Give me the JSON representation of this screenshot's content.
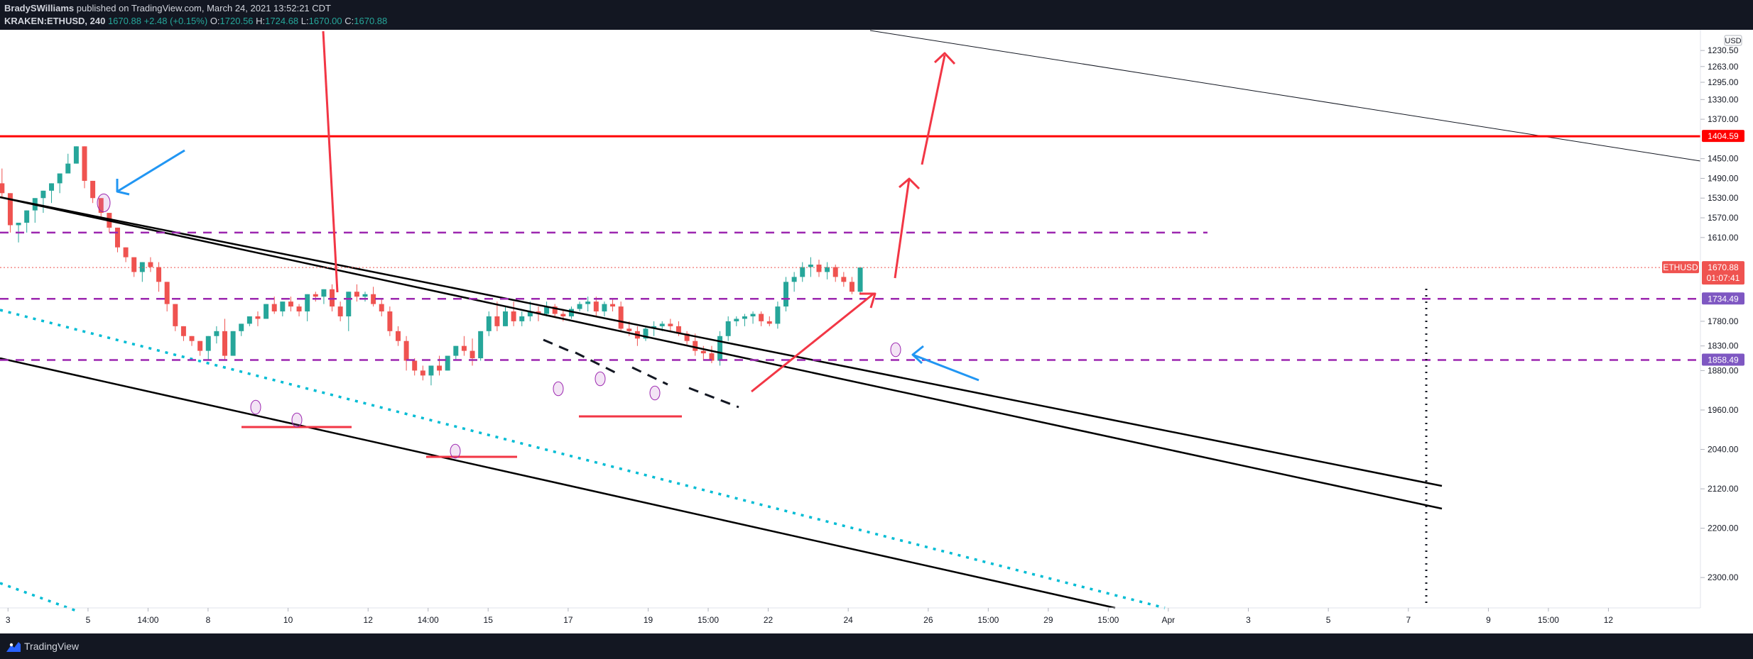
{
  "header": {
    "author": "BradySWilliams",
    "published_text": "published on TradingView.com, March 24, 2021 13:52:21 CDT",
    "symbol": "KRAKEN:ETHUSD, 240",
    "last": "1670.88",
    "change": "+2.48 (+0.15%)",
    "o_label": "O:",
    "o": "1720.56",
    "h_label": "H:",
    "h": "1724.68",
    "l_label": "L:",
    "l": "1670.00",
    "c_label": "C:",
    "c": "1670.88"
  },
  "footer": {
    "brand": "TradingView"
  },
  "colors": {
    "background": "#ffffff",
    "up": "#26a69a",
    "down": "#ef5350",
    "resistance": "#ff0000",
    "dashed_levels": "#9c27b0",
    "channel": "#000000",
    "dotted_trend": "#00bcd4",
    "arrows_blue": "#2196f3",
    "arrows_red": "#f23645"
  },
  "chart_data": {
    "type": "candlestick",
    "symbol": "ETHUSD",
    "y_axis": {
      "unit": "USD",
      "inverted": true,
      "range": [
        1200,
        2330
      ],
      "ticks": [
        1230.5,
        1263,
        1295,
        1330,
        1370,
        1450,
        1490,
        1530,
        1570,
        1610,
        1780,
        1830,
        1880,
        1960,
        2040,
        2120,
        2200,
        2300
      ],
      "tick_labels": [
        "1230.50",
        "1263.00",
        "1295.00",
        "1330.00",
        "1370.00",
        "1450.00",
        "1490.00",
        "1530.00",
        "1570.00",
        "1610.00",
        "1780.00",
        "1830.00",
        "1880.00",
        "1960.00",
        "2040.00",
        "2120.00",
        "2200.00",
        "2300.00"
      ]
    },
    "x_axis": {
      "range_days": [
        2.8,
        45.3
      ],
      "ticks": [
        {
          "t": 3,
          "label": "3"
        },
        {
          "t": 5,
          "label": "5"
        },
        {
          "t": 6.5,
          "label": "14:00"
        },
        {
          "t": 8,
          "label": "8"
        },
        {
          "t": 10,
          "label": "10"
        },
        {
          "t": 12,
          "label": "12"
        },
        {
          "t": 13.5,
          "label": "14:00"
        },
        {
          "t": 15,
          "label": "15"
        },
        {
          "t": 17,
          "label": "17"
        },
        {
          "t": 19,
          "label": "19"
        },
        {
          "t": 20.5,
          "label": "15:00"
        },
        {
          "t": 22,
          "label": "22"
        },
        {
          "t": 24,
          "label": "24"
        },
        {
          "t": 26,
          "label": "26"
        },
        {
          "t": 27.5,
          "label": "15:00"
        },
        {
          "t": 29,
          "label": "29"
        },
        {
          "t": 30.5,
          "label": "15:00"
        },
        {
          "t": 32,
          "label": "Apr"
        },
        {
          "t": 34,
          "label": "3"
        },
        {
          "t": 36,
          "label": "5"
        },
        {
          "t": 38,
          "label": "7"
        },
        {
          "t": 40,
          "label": "9"
        },
        {
          "t": 41.5,
          "label": "15:00"
        },
        {
          "t": 43,
          "label": "12"
        }
      ]
    },
    "price_labels": [
      {
        "value": 1404.59,
        "text": "1404.59",
        "color": "#ff0000"
      },
      {
        "value": 1734.49,
        "text": "1734.49",
        "color": "#7e57c2"
      },
      {
        "value": 1858.49,
        "text": "1858.49",
        "color": "#7e57c2"
      }
    ],
    "current": {
      "symbol": "ETHUSD",
      "value": 1670.88,
      "text": "1670.88",
      "countdown": "01:07:41"
    },
    "candles_ohlc": [
      [
        1500,
        1530,
        1470,
        1520
      ],
      [
        1520,
        1545,
        1600,
        1585
      ],
      [
        1585,
        1595,
        1620,
        1580
      ],
      [
        1580,
        1600,
        1590,
        1555
      ],
      [
        1555,
        1570,
        1580,
        1530
      ],
      [
        1530,
        1545,
        1560,
        1515
      ],
      [
        1515,
        1528,
        1540,
        1500
      ],
      [
        1500,
        1512,
        1520,
        1480
      ],
      [
        1480,
        1470,
        1440,
        1460
      ],
      [
        1460,
        1445,
        1430,
        1425
      ],
      [
        1425,
        1435,
        1510,
        1495
      ],
      [
        1495,
        1505,
        1540,
        1530
      ],
      [
        1530,
        1545,
        1570,
        1560
      ],
      [
        1560,
        1570,
        1600,
        1590
      ],
      [
        1590,
        1598,
        1640,
        1630
      ],
      [
        1630,
        1640,
        1660,
        1650
      ],
      [
        1650,
        1655,
        1690,
        1680
      ],
      [
        1680,
        1690,
        1700,
        1660
      ],
      [
        1660,
        1650,
        1680,
        1670
      ],
      [
        1670,
        1660,
        1720,
        1700
      ],
      [
        1700,
        1705,
        1760,
        1745
      ],
      [
        1745,
        1755,
        1800,
        1790
      ],
      [
        1790,
        1795,
        1820,
        1810
      ],
      [
        1810,
        1815,
        1830,
        1820
      ],
      [
        1820,
        1825,
        1850,
        1840
      ],
      [
        1840,
        1845,
        1860,
        1810
      ],
      [
        1810,
        1790,
        1825,
        1800
      ],
      [
        1800,
        1775,
        1860,
        1850
      ],
      [
        1850,
        1845,
        1830,
        1800
      ],
      [
        1800,
        1790,
        1810,
        1785
      ],
      [
        1785,
        1780,
        1790,
        1770
      ],
      [
        1770,
        1760,
        1790,
        1775
      ],
      [
        1775,
        1760,
        1770,
        1745
      ],
      [
        1745,
        1730,
        1765,
        1760
      ],
      [
        1760,
        1750,
        1770,
        1740
      ],
      [
        1740,
        1730,
        1760,
        1750
      ],
      [
        1750,
        1745,
        1770,
        1760
      ],
      [
        1760,
        1750,
        1780,
        1725
      ],
      [
        1725,
        1720,
        1740,
        1730
      ],
      [
        1730,
        1720,
        1745,
        1715
      ],
      [
        1715,
        1705,
        1760,
        1750
      ],
      [
        1750,
        1740,
        1780,
        1770
      ],
      [
        1770,
        1760,
        1800,
        1720
      ],
      [
        1720,
        1705,
        1740,
        1730
      ],
      [
        1730,
        1720,
        1740,
        1725
      ],
      [
        1725,
        1710,
        1750,
        1745
      ],
      [
        1745,
        1735,
        1770,
        1760
      ],
      [
        1760,
        1750,
        1810,
        1800
      ],
      [
        1800,
        1790,
        1830,
        1820
      ],
      [
        1820,
        1810,
        1880,
        1860
      ],
      [
        1860,
        1855,
        1890,
        1880
      ],
      [
        1880,
        1870,
        1900,
        1890
      ],
      [
        1890,
        1880,
        1910,
        1870
      ],
      [
        1870,
        1850,
        1890,
        1880
      ],
      [
        1880,
        1850,
        1870,
        1850
      ],
      [
        1850,
        1840,
        1860,
        1830
      ],
      [
        1830,
        1810,
        1850,
        1840
      ],
      [
        1840,
        1815,
        1870,
        1855
      ],
      [
        1855,
        1850,
        1860,
        1800
      ],
      [
        1800,
        1760,
        1810,
        1770
      ],
      [
        1770,
        1740,
        1800,
        1790
      ],
      [
        1790,
        1750,
        1760,
        1760
      ],
      [
        1760,
        1740,
        1790,
        1780
      ],
      [
        1780,
        1760,
        1790,
        1770
      ],
      [
        1770,
        1740,
        1780,
        1760
      ],
      [
        1760,
        1750,
        1780,
        1765
      ],
      [
        1765,
        1740,
        1770,
        1750
      ],
      [
        1750,
        1745,
        1770,
        1765
      ],
      [
        1765,
        1755,
        1780,
        1770
      ],
      [
        1770,
        1750,
        1775,
        1755
      ],
      [
        1755,
        1740,
        1760,
        1745
      ],
      [
        1745,
        1730,
        1760,
        1740
      ],
      [
        1740,
        1730,
        1770,
        1760
      ],
      [
        1760,
        1740,
        1770,
        1745
      ],
      [
        1745,
        1735,
        1760,
        1750
      ],
      [
        1750,
        1740,
        1800,
        1795
      ],
      [
        1795,
        1780,
        1810,
        1800
      ],
      [
        1800,
        1790,
        1830,
        1815
      ],
      [
        1815,
        1790,
        1820,
        1795
      ],
      [
        1795,
        1780,
        1810,
        1790
      ],
      [
        1790,
        1780,
        1800,
        1785
      ],
      [
        1785,
        1775,
        1800,
        1790
      ],
      [
        1790,
        1780,
        1810,
        1805
      ],
      [
        1805,
        1800,
        1830,
        1820
      ],
      [
        1820,
        1805,
        1850,
        1840
      ],
      [
        1840,
        1830,
        1860,
        1845
      ],
      [
        1845,
        1830,
        1865,
        1860
      ],
      [
        1860,
        1800,
        1870,
        1810
      ],
      [
        1810,
        1770,
        1820,
        1780
      ],
      [
        1780,
        1770,
        1790,
        1775
      ],
      [
        1775,
        1765,
        1790,
        1770
      ],
      [
        1770,
        1760,
        1785,
        1765
      ],
      [
        1765,
        1760,
        1790,
        1780
      ],
      [
        1780,
        1770,
        1790,
        1785
      ],
      [
        1785,
        1740,
        1795,
        1750
      ],
      [
        1750,
        1690,
        1760,
        1700
      ],
      [
        1700,
        1680,
        1720,
        1690
      ],
      [
        1690,
        1660,
        1700,
        1670
      ],
      [
        1670,
        1650,
        1690,
        1665
      ],
      [
        1665,
        1655,
        1690,
        1680
      ],
      [
        1680,
        1660,
        1695,
        1670
      ],
      [
        1670,
        1665,
        1700,
        1690
      ],
      [
        1690,
        1680,
        1710,
        1700
      ],
      [
        1700,
        1690,
        1725,
        1720
      ],
      [
        1720,
        1670,
        1725,
        1670.88
      ]
    ]
  }
}
